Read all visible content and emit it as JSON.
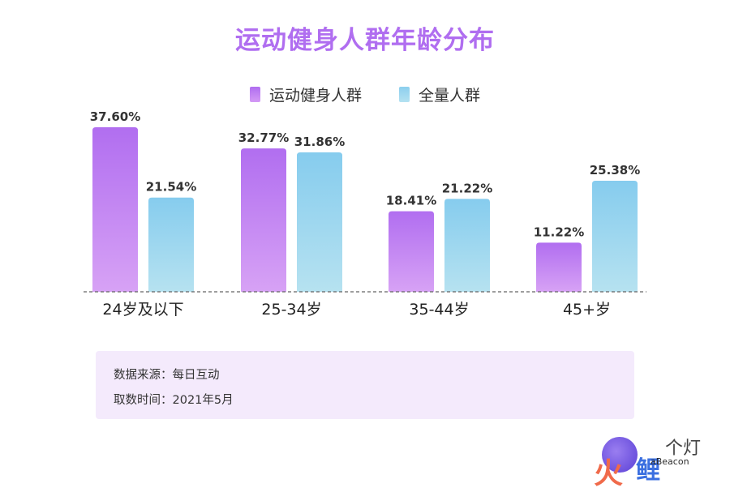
{
  "chart_data": {
    "type": "bar",
    "title": "运动健身人群年龄分布",
    "categories": [
      "24岁及以下",
      "25-34岁",
      "35-44岁",
      "45+岁"
    ],
    "series": [
      {
        "name": "运动健身人群",
        "values": [
          37.6,
          32.77,
          18.41,
          11.22
        ],
        "labels": [
          "37.60%",
          "32.77%",
          "18.41%",
          "11.22%"
        ],
        "color": "#b06ef0"
      },
      {
        "name": "全量人群",
        "values": [
          21.54,
          31.86,
          21.22,
          25.38
        ],
        "labels": [
          "21.54%",
          "31.86%",
          "21.22%",
          "25.38%"
        ],
        "color": "#8ccfee"
      }
    ],
    "ylim": [
      0,
      37.6
    ],
    "legend": "top-center",
    "grid": false
  },
  "source": {
    "line1": "数据来源：每日互动",
    "line2": "取数时间：2021年5月"
  },
  "logo": {
    "fire_char": "火",
    "main_text": "鲤",
    "top_text": "个灯",
    "small_text": "aBeacon"
  }
}
